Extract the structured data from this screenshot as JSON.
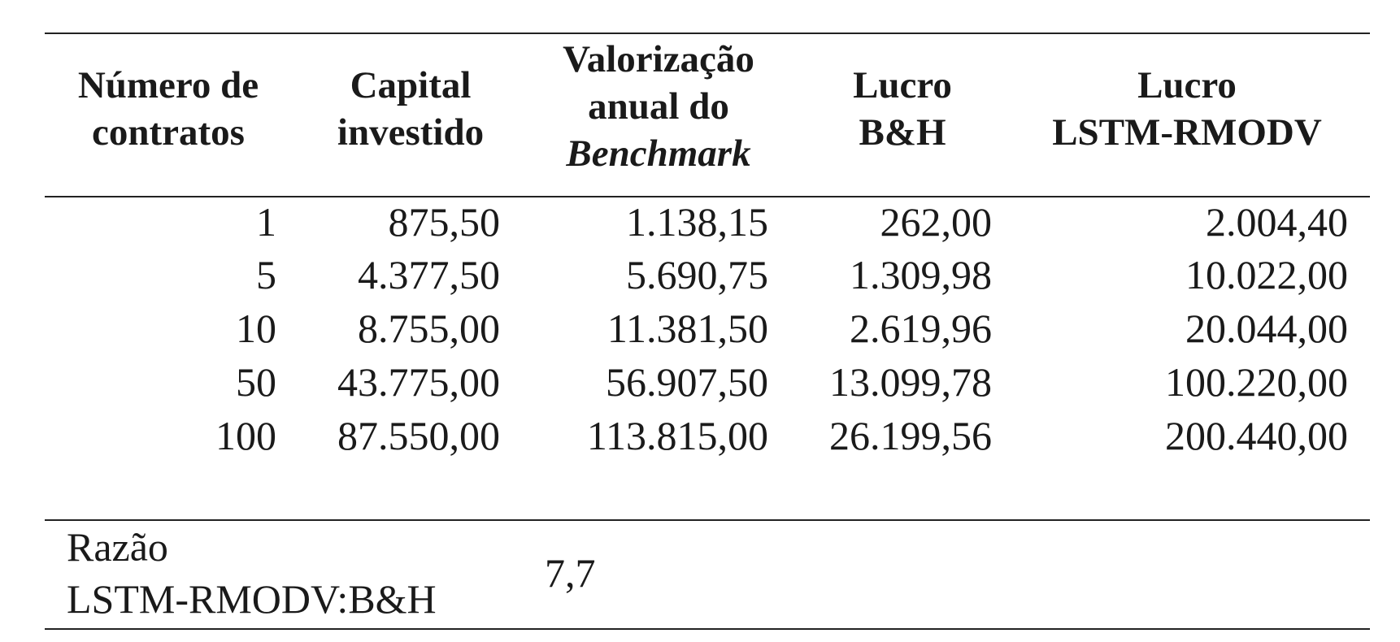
{
  "table": {
    "headers": [
      {
        "lines": [
          "Número de",
          "contratos"
        ]
      },
      {
        "lines": [
          "Capital",
          "investido"
        ]
      },
      {
        "lines": [
          "Valorização",
          "anual do",
          "Benchmark"
        ]
      },
      {
        "lines": [
          "Lucro",
          "B&H"
        ]
      },
      {
        "lines": [
          "Lucro",
          "LSTM-RMODV"
        ]
      }
    ],
    "rows": [
      [
        "1",
        "875,50",
        "1.138,15",
        "262,00",
        "2.004,40"
      ],
      [
        "5",
        "4.377,50",
        "5.690,75",
        "1.309,98",
        "10.022,00"
      ],
      [
        "10",
        "8.755,00",
        "11.381,50",
        "2.619,96",
        "20.044,00"
      ],
      [
        "50",
        "43.775,00",
        "56.907,50",
        "13.099,78",
        "100.220,00"
      ],
      [
        "100",
        "87.550,00",
        "113.815,00",
        "26.199,56",
        "200.440,00"
      ]
    ],
    "footer": {
      "label_lines": [
        "Razão",
        "LSTM-RMODV:B&H"
      ],
      "value": "7,7"
    }
  }
}
